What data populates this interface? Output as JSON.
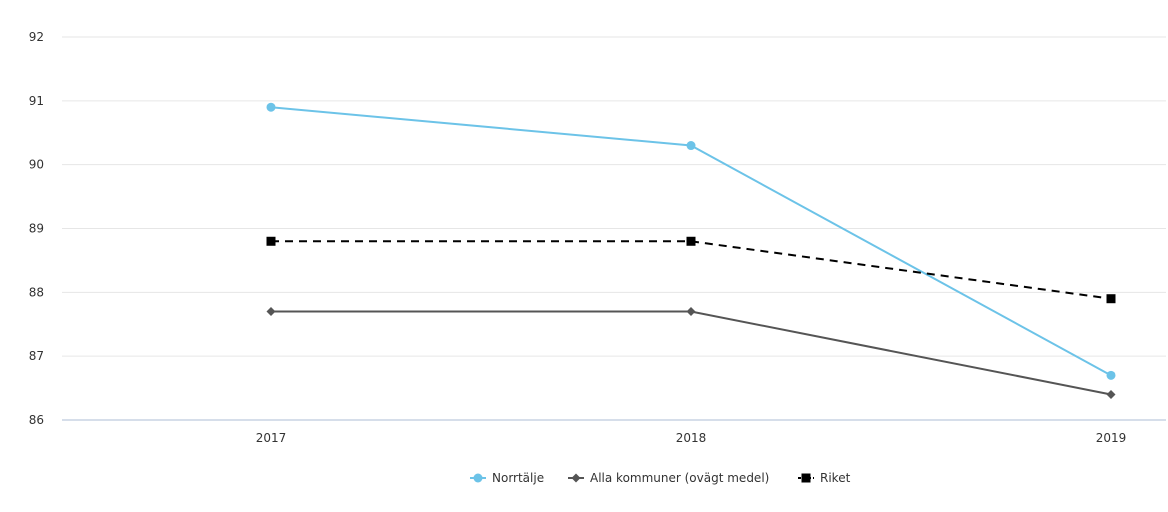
{
  "chart_data": {
    "type": "line",
    "title": "",
    "xlabel": "",
    "ylabel": "",
    "categories": [
      "2017",
      "2018",
      "2019"
    ],
    "ylim": [
      86,
      92
    ],
    "yticks": [
      86,
      87,
      88,
      89,
      90,
      91,
      92
    ],
    "grid": true,
    "legend_position": "bottom",
    "series": [
      {
        "name": "Norrtälje",
        "values": [
          90.9,
          90.3,
          86.7
        ],
        "color": "#6cc3e8",
        "marker": "circle",
        "dash": "solid"
      },
      {
        "name": "Alla kommuner (ovägt medel)",
        "values": [
          87.7,
          87.7,
          86.4
        ],
        "color": "#555555",
        "marker": "diamond",
        "dash": "solid"
      },
      {
        "name": "Riket",
        "values": [
          88.8,
          88.8,
          87.9
        ],
        "color": "#000000",
        "marker": "square",
        "dash": "dashed"
      }
    ]
  }
}
